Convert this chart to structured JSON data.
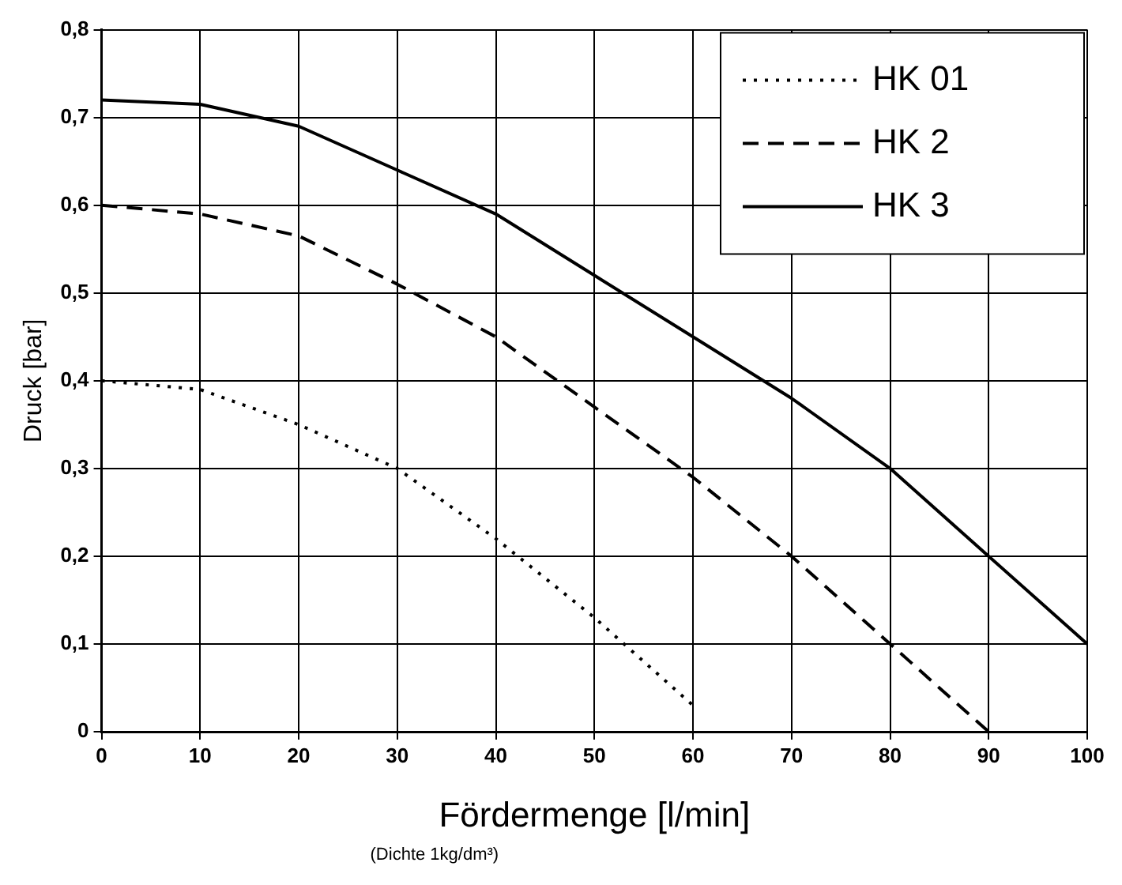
{
  "chart_data": {
    "type": "line",
    "xlabel": "Fördermenge [l/min]",
    "ylabel": "Druck [bar]",
    "annotations": [
      "(Dichte 1kg/dm³)"
    ],
    "x": [
      0,
      10,
      20,
      30,
      40,
      50,
      60,
      70,
      80,
      90,
      100
    ],
    "series": [
      {
        "name": "HK 01",
        "color": "#000000",
        "line_style": "dotted",
        "values": [
          0.4,
          0.39,
          0.35,
          0.3,
          0.22,
          0.13,
          0.03,
          null,
          null,
          null,
          null
        ]
      },
      {
        "name": "HK 2",
        "color": "#000000",
        "line_style": "dashed",
        "values": [
          0.6,
          0.59,
          0.565,
          0.51,
          0.45,
          0.37,
          0.29,
          0.2,
          0.1,
          0.0,
          null
        ]
      },
      {
        "name": "HK 3",
        "color": "#000000",
        "line_style": "solid",
        "values": [
          0.72,
          0.715,
          0.69,
          0.64,
          0.59,
          0.52,
          0.45,
          0.38,
          0.3,
          0.2,
          0.1
        ]
      }
    ],
    "xlim": [
      0,
      100
    ],
    "xticks": [
      0,
      10,
      20,
      30,
      40,
      50,
      60,
      70,
      80,
      90,
      100
    ],
    "ylim": [
      0,
      0.8
    ],
    "yticks": [
      {
        "value": 0,
        "label": "0"
      },
      {
        "value": 0.1,
        "label": "0,1"
      },
      {
        "value": 0.2,
        "label": "0,2"
      },
      {
        "value": 0.3,
        "label": "0,3"
      },
      {
        "value": 0.4,
        "label": "0,4"
      },
      {
        "value": 0.5,
        "label": "0,5"
      },
      {
        "value": 0.6,
        "label": "0,6"
      },
      {
        "value": 0.7,
        "label": "0,7"
      },
      {
        "value": 0.8,
        "label": "0,8"
      }
    ],
    "grid": true,
    "legend": "top right",
    "marker": "none"
  }
}
